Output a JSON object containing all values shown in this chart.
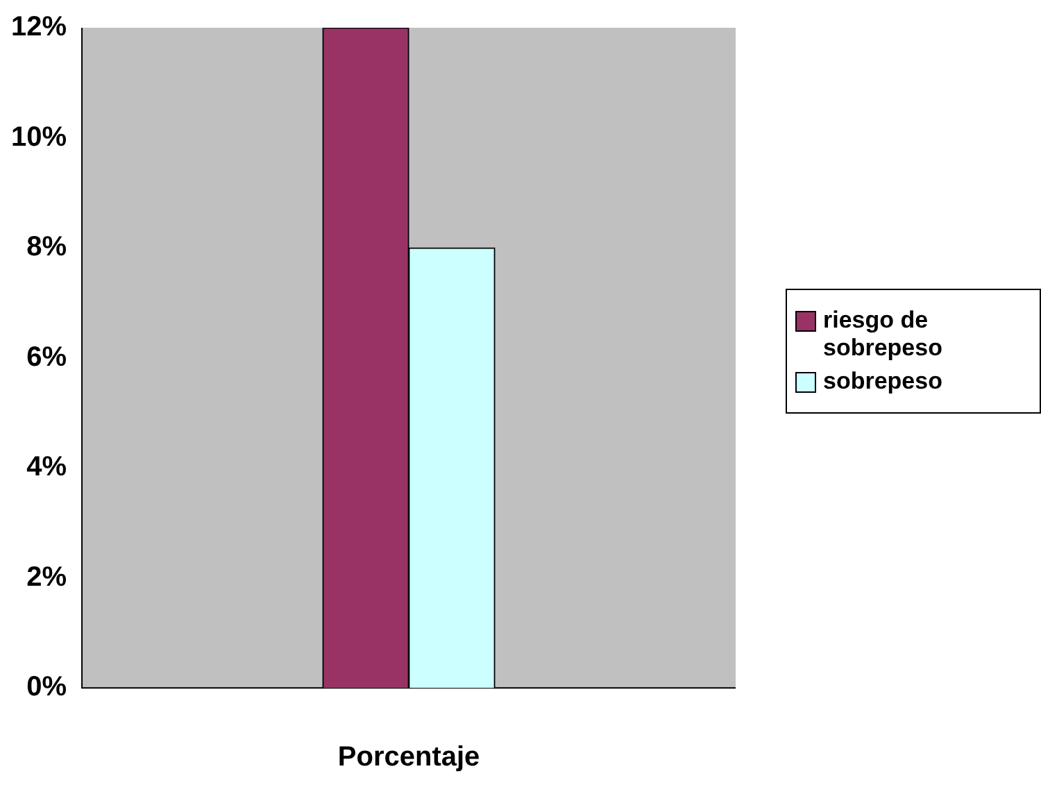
{
  "chart_data": {
    "type": "bar",
    "xlabel": "Porcentaje",
    "categories": [
      null
    ],
    "series": [
      {
        "name": "riesgo de sobrepeso",
        "color": "#993366",
        "values": [
          12
        ]
      },
      {
        "name": "sobrepeso",
        "color": "#ccffff",
        "values": [
          8
        ]
      }
    ],
    "ylim": [
      0,
      12
    ],
    "yticks": [
      {
        "value": 0,
        "label": "0%"
      },
      {
        "value": 2,
        "label": "2%"
      },
      {
        "value": 4,
        "label": "4%"
      },
      {
        "value": 6,
        "label": "6%"
      },
      {
        "value": 8,
        "label": "8%"
      },
      {
        "value": 10,
        "label": "10%"
      },
      {
        "value": 12,
        "label": "12%"
      }
    ],
    "grid": false,
    "legend": "right"
  }
}
